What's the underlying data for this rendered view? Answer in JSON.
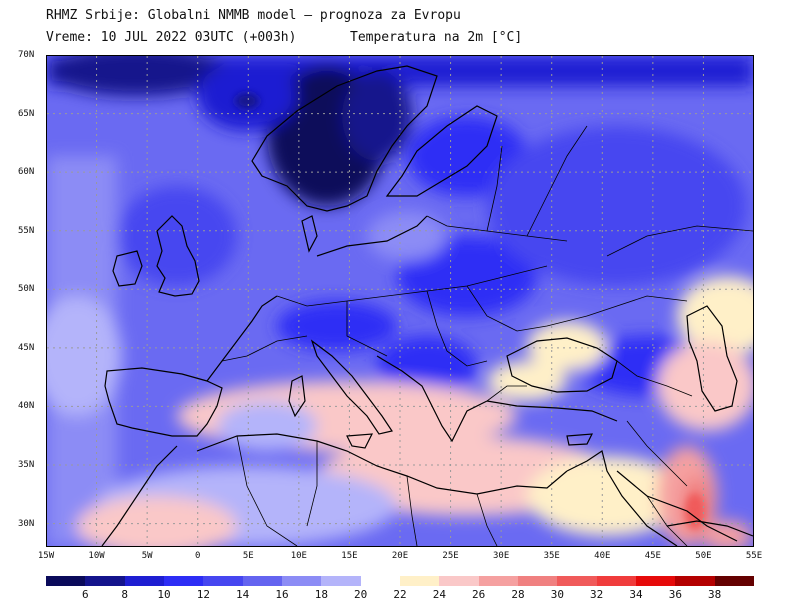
{
  "header": {
    "line1": "RHMZ Srbije: Globalni NMMB model — prognoza za Evropu",
    "line2": "Vreme: 10 JUL 2022 03UTC (+003h)",
    "parameter": "Temperatura na 2m [°C]"
  },
  "axes": {
    "lat_labels": [
      "70N",
      "65N",
      "60N",
      "55N",
      "50N",
      "45N",
      "40N",
      "35N",
      "30N"
    ],
    "lon_labels": [
      "15W",
      "10W",
      "5W",
      "0",
      "5E",
      "10E",
      "15E",
      "20E",
      "25E",
      "30E",
      "35E",
      "40E",
      "45E",
      "50E",
      "55E"
    ]
  },
  "legend": {
    "labels": [
      "6",
      "8",
      "10",
      "12",
      "14",
      "16",
      "18",
      "20",
      "22",
      "24",
      "26",
      "28",
      "30",
      "32",
      "34",
      "36",
      "38"
    ],
    "colors": [
      "#0a0a5a",
      "#14148c",
      "#1e1ed2",
      "#2d2df5",
      "#4646f0",
      "#6464f0",
      "#8c8cf5",
      "#b4b4fa",
      "#ffffff",
      "#fff0c8",
      "#fac8c8",
      "#f5a0a0",
      "#f08080",
      "#f05a5a",
      "#f03c3c",
      "#e60a0a",
      "#b40000",
      "#640000"
    ]
  },
  "map": {
    "lon_range": [
      -15,
      55
    ],
    "lat_range": [
      28,
      70
    ],
    "grid": true
  }
}
